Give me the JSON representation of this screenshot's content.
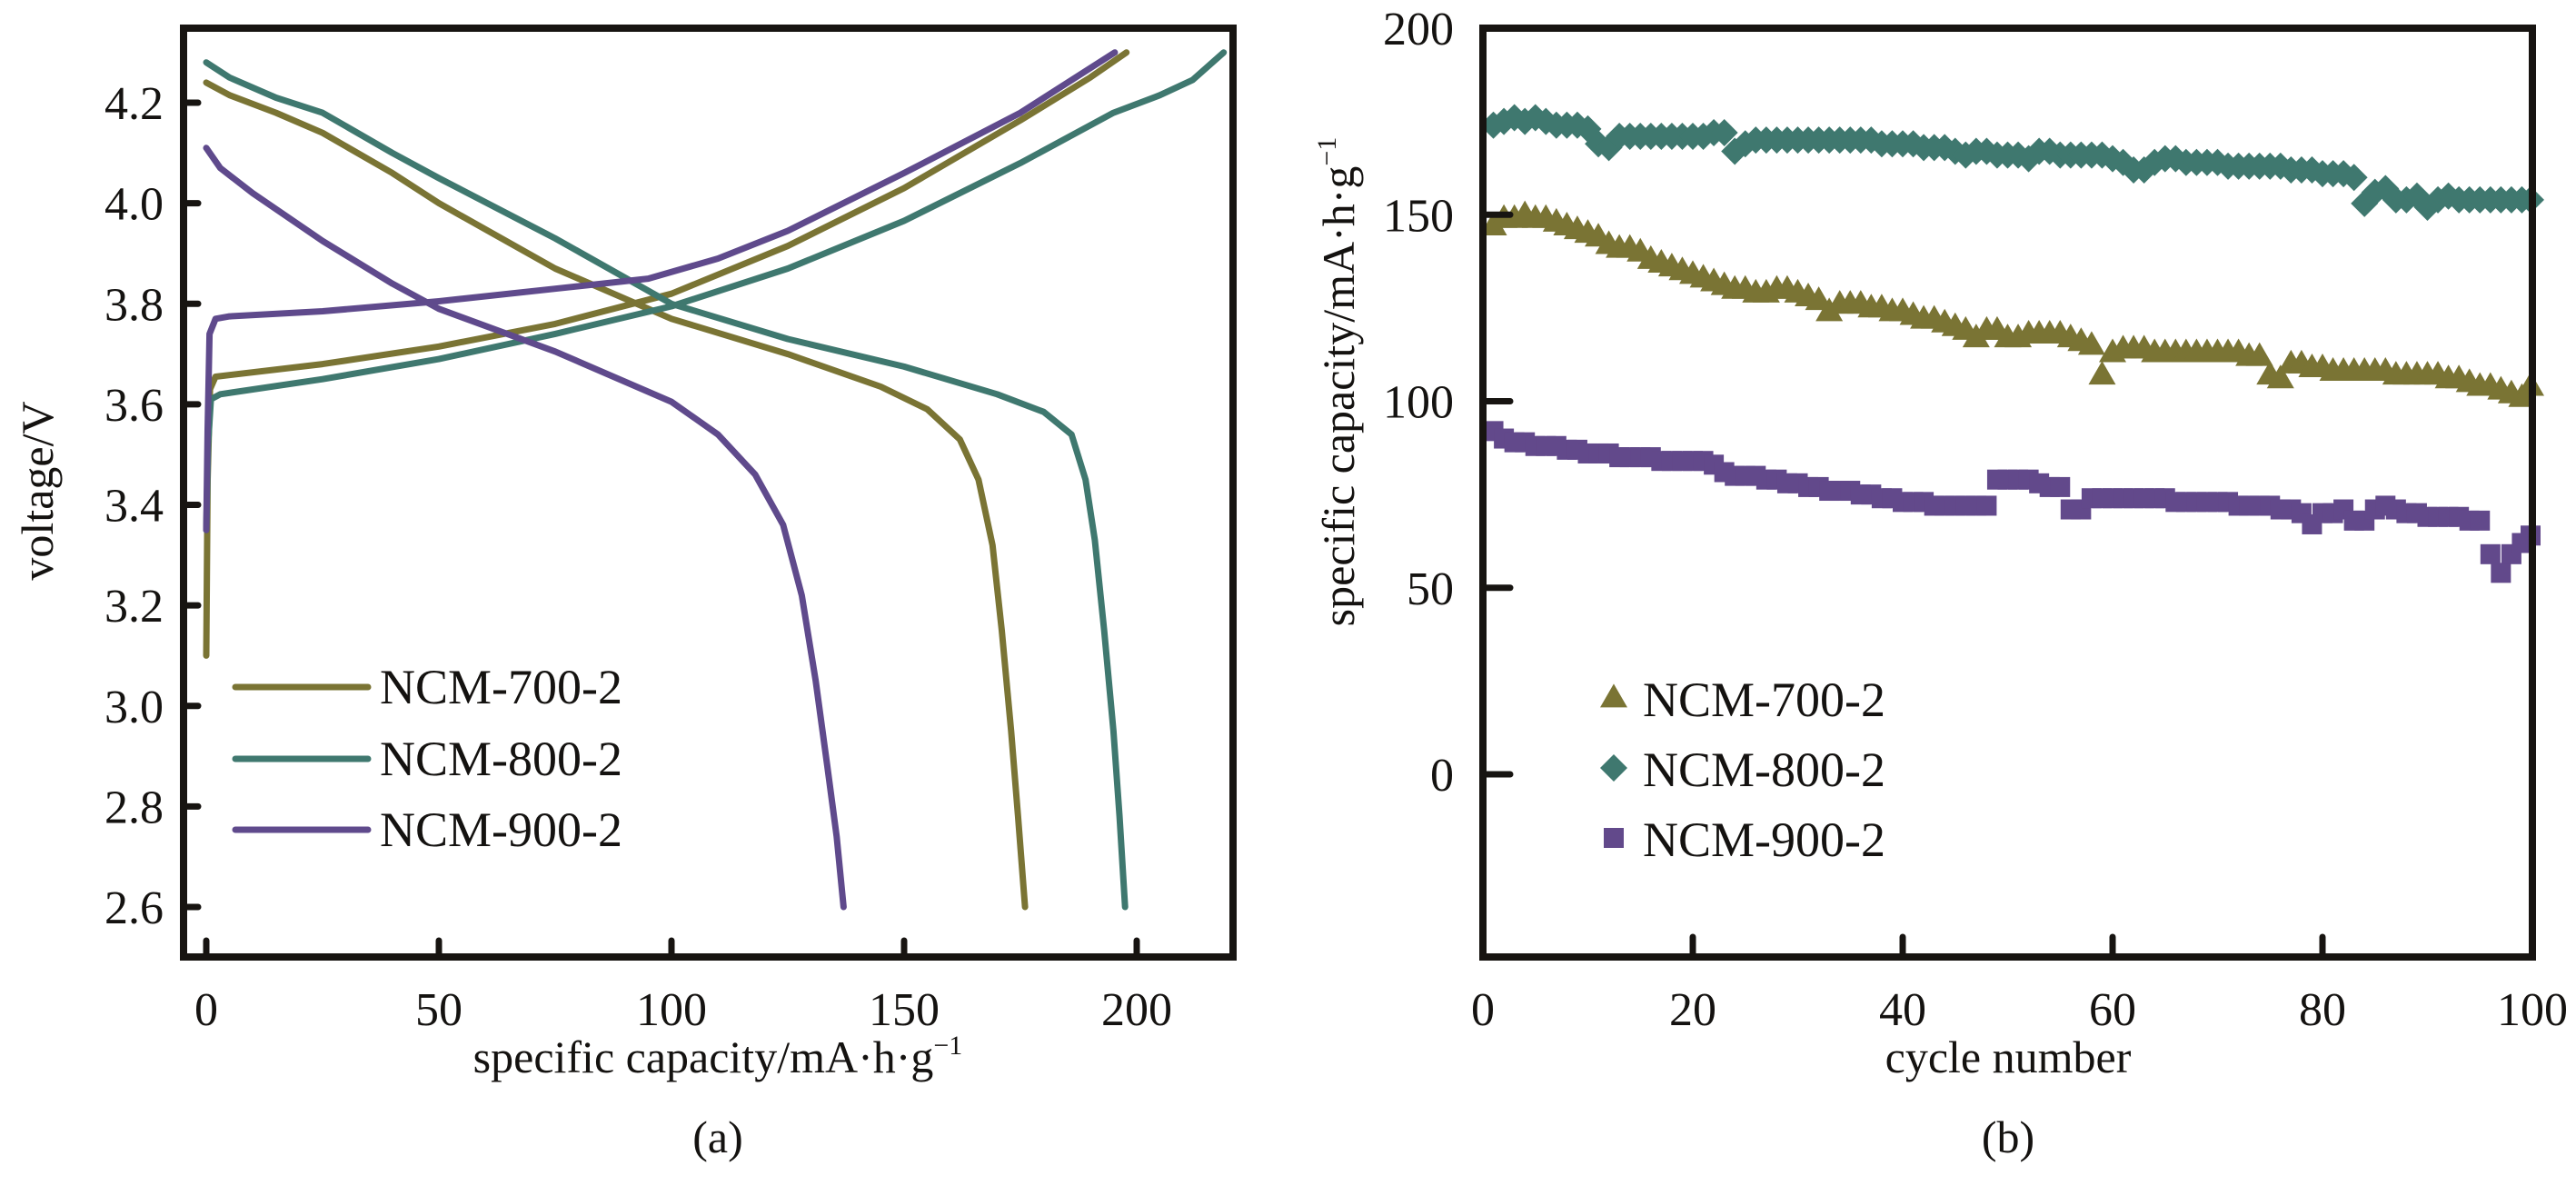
{
  "chart_data": [
    {
      "panel": "a",
      "type": "line",
      "caption": "(a)",
      "xlabel": "specific capacity/mA·h·g",
      "xlabel_sup": "−1",
      "ylabel": "voltage/V",
      "xlim": [
        -5,
        220
      ],
      "ylim": [
        2.5,
        4.35
      ],
      "xticks": [
        0,
        50,
        100,
        150,
        200
      ],
      "xtick_labels": [
        "0",
        "50",
        "100",
        "150",
        "200"
      ],
      "yticks": [
        2.6,
        2.8,
        3.0,
        3.2,
        3.4,
        3.6,
        3.8,
        4.0,
        4.2
      ],
      "ytick_labels": [
        "2.6",
        "2.8",
        "3.0",
        "3.2",
        "3.4",
        "3.6",
        "3.8",
        "4.0",
        "4.2"
      ],
      "grid": false,
      "legend_position": "lower-left",
      "series": [
        {
          "name": "NCM-700-2",
          "color": "#7a7434",
          "charge": [
            [
              0,
              3.1
            ],
            [
              0.3,
              3.45
            ],
            [
              0.8,
              3.63
            ],
            [
              2,
              3.655
            ],
            [
              25,
              3.68
            ],
            [
              50,
              3.715
            ],
            [
              75,
              3.76
            ],
            [
              100,
              3.82
            ],
            [
              125,
              3.915
            ],
            [
              150,
              4.03
            ],
            [
              175,
              4.165
            ],
            [
              190,
              4.25
            ],
            [
              197.8,
              4.3
            ]
          ],
          "discharge": [
            [
              0,
              4.24
            ],
            [
              5,
              4.215
            ],
            [
              15,
              4.18
            ],
            [
              25,
              4.14
            ],
            [
              40,
              4.06
            ],
            [
              50,
              4.0
            ],
            [
              75,
              3.87
            ],
            [
              100,
              3.77
            ],
            [
              125,
              3.7
            ],
            [
              145,
              3.635
            ],
            [
              155,
              3.59
            ],
            [
              162,
              3.53
            ],
            [
              166,
              3.45
            ],
            [
              169,
              3.32
            ],
            [
              171,
              3.15
            ],
            [
              173,
              2.95
            ],
            [
              174.5,
              2.78
            ],
            [
              176,
              2.6
            ]
          ]
        },
        {
          "name": "NCM-800-2",
          "color": "#3f786f",
          "charge": [
            [
              0,
              3.35
            ],
            [
              0.4,
              3.52
            ],
            [
              1,
              3.61
            ],
            [
              3,
              3.62
            ],
            [
              25,
              3.65
            ],
            [
              50,
              3.69
            ],
            [
              75,
              3.74
            ],
            [
              100,
              3.795
            ],
            [
              125,
              3.87
            ],
            [
              150,
              3.965
            ],
            [
              175,
              4.08
            ],
            [
              195,
              4.18
            ],
            [
              205,
              4.215
            ],
            [
              212,
              4.245
            ],
            [
              218.7,
              4.3
            ]
          ],
          "discharge": [
            [
              0,
              4.28
            ],
            [
              5,
              4.25
            ],
            [
              15,
              4.21
            ],
            [
              25,
              4.18
            ],
            [
              40,
              4.1
            ],
            [
              50,
              4.05
            ],
            [
              75,
              3.93
            ],
            [
              100,
              3.8
            ],
            [
              125,
              3.73
            ],
            [
              150,
              3.675
            ],
            [
              170,
              3.62
            ],
            [
              180,
              3.585
            ],
            [
              186,
              3.54
            ],
            [
              189,
              3.45
            ],
            [
              191,
              3.33
            ],
            [
              193,
              3.15
            ],
            [
              195,
              2.95
            ],
            [
              196.3,
              2.78
            ],
            [
              197.5,
              2.6
            ]
          ]
        },
        {
          "name": "NCM-900-2",
          "color": "#5f4a8c",
          "charge": [
            [
              0,
              3.35
            ],
            [
              0.3,
              3.55
            ],
            [
              0.7,
              3.74
            ],
            [
              2,
              3.77
            ],
            [
              5,
              3.775
            ],
            [
              25,
              3.785
            ],
            [
              50,
              3.805
            ],
            [
              75,
              3.83
            ],
            [
              95,
              3.85
            ],
            [
              110,
              3.89
            ],
            [
              125,
              3.945
            ],
            [
              150,
              4.06
            ],
            [
              175,
              4.18
            ],
            [
              195.3,
              4.3
            ]
          ],
          "discharge": [
            [
              0,
              4.11
            ],
            [
              3,
              4.07
            ],
            [
              10,
              4.02
            ],
            [
              25,
              3.925
            ],
            [
              40,
              3.84
            ],
            [
              50,
              3.79
            ],
            [
              75,
              3.705
            ],
            [
              100,
              3.605
            ],
            [
              110,
              3.54
            ],
            [
              118,
              3.46
            ],
            [
              124,
              3.36
            ],
            [
              128,
              3.22
            ],
            [
              131,
              3.05
            ],
            [
              133.5,
              2.88
            ],
            [
              135.5,
              2.74
            ],
            [
              137,
              2.6
            ]
          ]
        }
      ]
    },
    {
      "panel": "b",
      "type": "scatter",
      "caption": "(b)",
      "xlabel": "cycle number",
      "ylabel": "specific capacity/mA·h·g",
      "ylabel_sup": "−1",
      "xlim": [
        0,
        100
      ],
      "ylim": [
        -50,
        200
      ],
      "xticks": [
        0,
        20,
        40,
        60,
        80,
        100
      ],
      "xtick_labels": [
        "0",
        "20",
        "40",
        "60",
        "80",
        "100"
      ],
      "yticks": [
        0,
        50,
        100,
        150,
        200
      ],
      "ytick_labels": [
        "0",
        "50",
        "100",
        "150",
        "200"
      ],
      "grid": false,
      "legend_position": "lower-left",
      "series": [
        {
          "name": "NCM-700-2",
          "marker": "triangle",
          "color": "#7a7434",
          "values": [
            147,
            149,
            149,
            150,
            149,
            149,
            148,
            147,
            146,
            145,
            144,
            142,
            141,
            141,
            140,
            138,
            137,
            136,
            135,
            134,
            133,
            132,
            131,
            130,
            130,
            129,
            129,
            130,
            130,
            129,
            128,
            127,
            124,
            126,
            126,
            126,
            125,
            125,
            124,
            124,
            123,
            122,
            122,
            121,
            120,
            119,
            117,
            119,
            119,
            117,
            117,
            118,
            118,
            118,
            118,
            117,
            116,
            115,
            107,
            113,
            114,
            114,
            114,
            113,
            113,
            113,
            113,
            113,
            113,
            113,
            113,
            113,
            112,
            112,
            107,
            106,
            110,
            110,
            109,
            109,
            108,
            108,
            108,
            108,
            108,
            108,
            107,
            107,
            107,
            107,
            107,
            106,
            106,
            105,
            104,
            104,
            103,
            102,
            101,
            104
          ]
        },
        {
          "name": "NCM-800-2",
          "marker": "diamond",
          "color": "#3f786f",
          "values": [
            174,
            175,
            176,
            175,
            176,
            175,
            174,
            174,
            174,
            173,
            169,
            168,
            171,
            171,
            171,
            171,
            171,
            171,
            171,
            171,
            171,
            172,
            172,
            167,
            169,
            170,
            170,
            170,
            170,
            170,
            170,
            170,
            170,
            170,
            170,
            170,
            170,
            169,
            169,
            169,
            169,
            168,
            168,
            168,
            167,
            166,
            167,
            167,
            166,
            166,
            166,
            165,
            167,
            167,
            166,
            166,
            166,
            166,
            166,
            165,
            164,
            162,
            162,
            164,
            165,
            165,
            164,
            164,
            164,
            164,
            163,
            163,
            163,
            163,
            163,
            163,
            162,
            162,
            162,
            161,
            161,
            161,
            160,
            153,
            156,
            157,
            154,
            154,
            155,
            152,
            154,
            155,
            154,
            154,
            154,
            154,
            154,
            154,
            154,
            154
          ]
        },
        {
          "name": "NCM-900-2",
          "marker": "square",
          "color": "#62498b",
          "values": [
            92,
            90,
            89,
            89,
            88,
            88,
            88,
            87,
            87,
            86,
            86,
            86,
            85,
            85,
            85,
            85,
            84,
            84,
            84,
            84,
            84,
            83,
            81,
            80,
            80,
            80,
            79,
            79,
            78,
            78,
            77,
            77,
            76,
            76,
            76,
            75,
            75,
            74,
            74,
            73,
            73,
            73,
            72,
            72,
            72,
            72,
            72,
            72,
            79,
            79,
            79,
            79,
            78,
            77,
            77,
            71,
            71,
            74,
            74,
            74,
            74,
            74,
            74,
            74,
            74,
            73,
            73,
            73,
            73,
            73,
            73,
            72,
            72,
            72,
            72,
            71,
            71,
            70,
            67,
            70,
            70,
            71,
            68,
            68,
            71,
            72,
            71,
            70,
            70,
            69,
            69,
            69,
            69,
            68,
            68,
            59,
            54,
            59,
            62,
            64
          ]
        }
      ]
    }
  ]
}
